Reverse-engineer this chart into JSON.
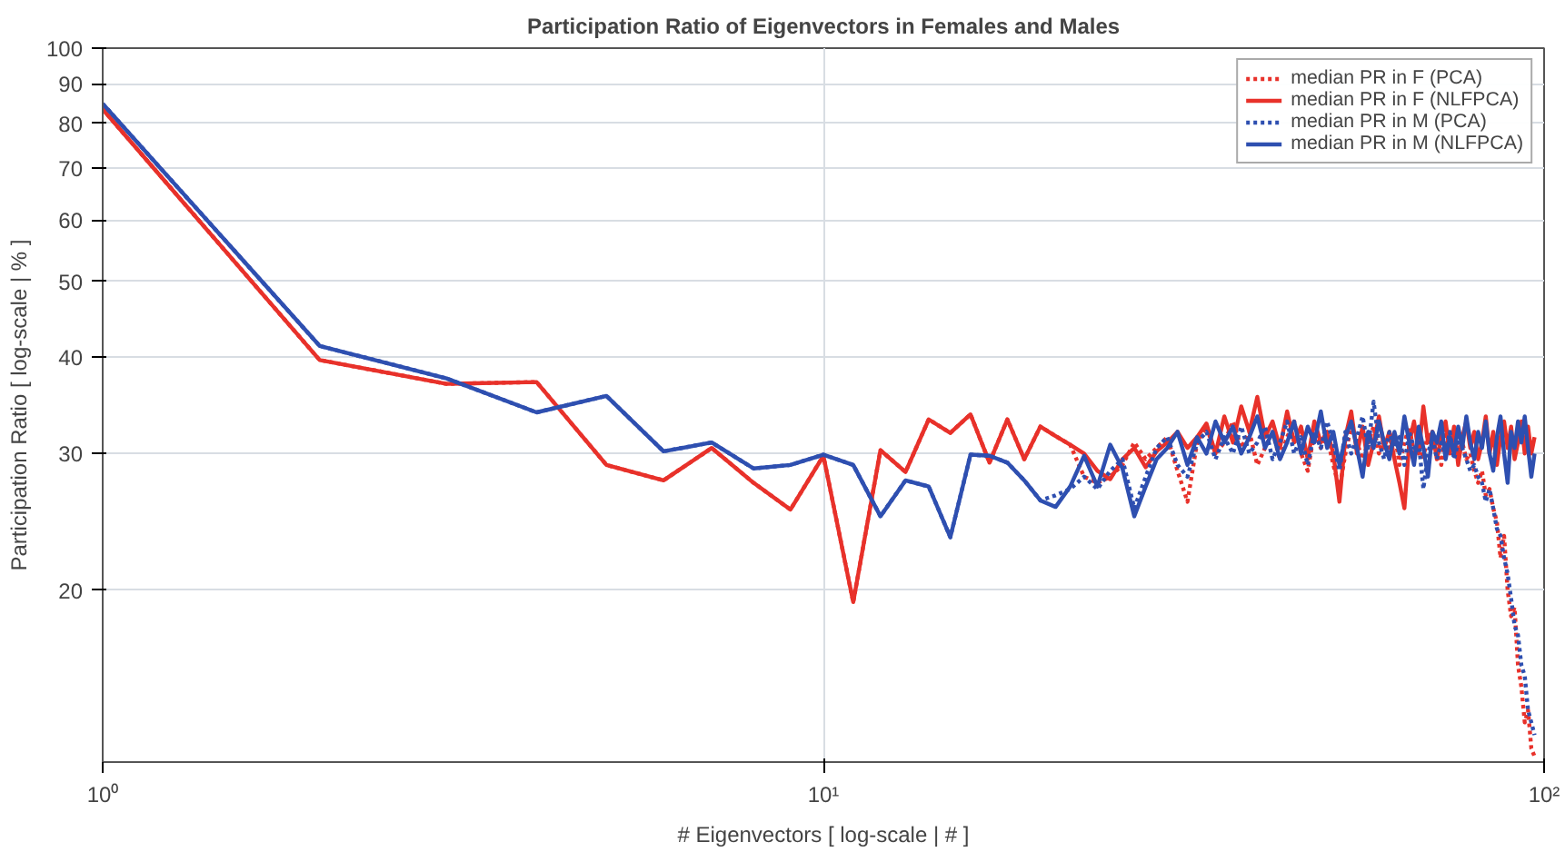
{
  "chart_data": {
    "type": "line",
    "title": "Participation Ratio of Eigenvectors in Females and Males",
    "xlabel": "# Eigenvectors [ log-scale | # ]",
    "ylabel": "Participation Ratio [ log-scale | % ]",
    "log": "xy",
    "grid": true,
    "legend": "top right",
    "marker": "none",
    "xlim": [
      1,
      100
    ],
    "ylim": [
      12,
      100
    ],
    "xticks": [
      {
        "value": 1,
        "label": "10⁰"
      },
      {
        "value": 10,
        "label": "10¹"
      },
      {
        "value": 100,
        "label": "10²"
      }
    ],
    "yticks": [
      20,
      30,
      40,
      50,
      60,
      70,
      80,
      90,
      100
    ],
    "x": [
      1,
      2,
      3,
      4,
      5,
      6,
      7,
      8,
      9,
      10,
      11,
      12,
      13,
      14,
      15,
      16,
      17,
      18,
      19,
      20,
      21,
      22,
      23,
      24,
      25,
      26,
      27,
      28,
      29,
      30,
      31,
      32,
      33,
      34,
      35,
      36,
      37,
      38,
      39,
      40,
      41,
      42,
      43,
      44,
      45,
      46,
      47,
      48,
      49,
      50,
      51,
      52,
      53,
      54,
      55,
      56,
      57,
      58,
      59,
      60,
      61,
      62,
      63,
      64,
      65,
      66,
      67,
      68,
      69,
      70,
      71,
      72,
      73,
      74,
      75,
      76,
      77,
      78,
      79,
      80,
      81,
      82,
      83,
      84,
      85,
      86,
      87,
      88,
      89,
      90,
      91,
      92,
      93,
      94,
      95,
      96,
      97
    ],
    "series": [
      {
        "name": "median PR in F (PCA)",
        "color": "#e8312a",
        "line_style": "dotted",
        "values": [
          83.4,
          39.6,
          36.9,
          37.1,
          29.0,
          27.7,
          30.5,
          27.5,
          25.4,
          29.8,
          19.3,
          30.3,
          28.4,
          33.2,
          31.9,
          33.7,
          29.2,
          33.2,
          29.5,
          32.5,
          31.6,
          30.8,
          28.0,
          27.5,
          28.0,
          29.0,
          31.0,
          29.5,
          30.5,
          31.5,
          28.5,
          26.0,
          31.0,
          32.5,
          30.0,
          31.0,
          33.0,
          30.5,
          32.0,
          29.0,
          30.5,
          32.0,
          29.5,
          31.5,
          33.0,
          30.0,
          28.5,
          32.0,
          30.5,
          31.5,
          29.0,
          27.0,
          30.0,
          32.5,
          31.0,
          29.5,
          31.0,
          32.5,
          30.0,
          31.5,
          30.5,
          32.0,
          29.0,
          31.0,
          32.5,
          30.0,
          31.5,
          29.5,
          32.0,
          30.5,
          31.0,
          29.0,
          32.0,
          30.5,
          31.5,
          30.0,
          31.0,
          29.5,
          30.0,
          28.5,
          27.5,
          28.5,
          26.5,
          27.0,
          25.5,
          24.5,
          22.0,
          23.5,
          20.0,
          18.5,
          19.0,
          16.0,
          15.0,
          13.5,
          14.0,
          12.5,
          12.2
        ]
      },
      {
        "name": "median PR in F (NLFPCA)",
        "color": "#e8312a",
        "line_style": "solid",
        "values": [
          83.4,
          39.6,
          36.9,
          37.1,
          29.0,
          27.7,
          30.5,
          27.5,
          25.4,
          29.8,
          19.3,
          30.3,
          28.4,
          33.2,
          31.9,
          33.7,
          29.2,
          33.2,
          29.5,
          32.5,
          31.6,
          30.8,
          30.0,
          28.5,
          27.8,
          29.5,
          30.5,
          28.8,
          30.2,
          31.0,
          32.0,
          30.5,
          31.5,
          32.8,
          30.0,
          33.5,
          31.0,
          34.5,
          32.0,
          35.5,
          31.5,
          33.0,
          30.5,
          34.0,
          31.0,
          32.5,
          29.5,
          33.0,
          31.0,
          32.0,
          30.0,
          26.0,
          31.5,
          34.0,
          30.0,
          32.5,
          29.0,
          31.0,
          33.5,
          30.5,
          32.0,
          29.5,
          27.5,
          25.5,
          31.0,
          33.0,
          30.0,
          34.5,
          31.0,
          32.0,
          29.5,
          31.5,
          33.0,
          30.0,
          32.5,
          29.0,
          31.5,
          33.0,
          30.5,
          32.0,
          29.5,
          31.0,
          33.5,
          30.0,
          32.0,
          29.0,
          31.5,
          33.0,
          30.5,
          32.5,
          29.5,
          31.0,
          33.0,
          30.0,
          32.5,
          30.0,
          31.5
        ]
      },
      {
        "name": "median PR in M (PCA)",
        "color": "#2e4fb0",
        "line_style": "dotted",
        "values": [
          84.8,
          41.3,
          37.5,
          33.9,
          35.6,
          30.2,
          31.0,
          28.7,
          29.0,
          29.9,
          29.0,
          24.9,
          27.7,
          27.2,
          23.4,
          29.9,
          29.8,
          29.2,
          27.7,
          26.1,
          26.5,
          27.0,
          28.0,
          27.0,
          28.5,
          29.5,
          25.5,
          28.0,
          30.5,
          31.5,
          29.0,
          28.0,
          31.0,
          32.0,
          29.5,
          31.5,
          30.0,
          32.5,
          30.0,
          31.0,
          32.5,
          29.5,
          31.0,
          33.0,
          30.0,
          31.5,
          29.0,
          32.0,
          30.5,
          33.0,
          31.0,
          28.5,
          32.0,
          30.0,
          31.5,
          33.5,
          30.5,
          35.0,
          31.0,
          29.5,
          32.0,
          30.5,
          31.5,
          29.0,
          32.0,
          30.5,
          31.0,
          27.0,
          30.0,
          31.5,
          29.5,
          31.0,
          30.0,
          32.0,
          29.5,
          31.0,
          30.5,
          29.5,
          28.5,
          29.0,
          28.0,
          27.5,
          26.0,
          27.0,
          25.5,
          24.0,
          23.5,
          22.0,
          21.0,
          19.5,
          18.0,
          17.5,
          16.0,
          15.5,
          14.0,
          13.5,
          13.0
        ]
      },
      {
        "name": "median PR in M (NLFPCA)",
        "color": "#2e4fb0",
        "line_style": "solid",
        "values": [
          84.8,
          41.3,
          37.5,
          33.9,
          35.6,
          30.2,
          31.0,
          28.7,
          29.0,
          29.9,
          29.0,
          24.9,
          27.7,
          27.2,
          23.4,
          29.9,
          29.8,
          29.2,
          27.7,
          26.1,
          25.6,
          27.2,
          29.8,
          27.2,
          30.8,
          28.7,
          24.9,
          27.2,
          29.5,
          30.5,
          32.0,
          29.0,
          31.5,
          30.0,
          33.0,
          31.0,
          32.5,
          30.0,
          31.5,
          33.5,
          30.5,
          32.0,
          29.5,
          31.0,
          33.0,
          30.0,
          32.5,
          31.0,
          34.0,
          30.5,
          32.0,
          29.0,
          31.5,
          33.0,
          30.5,
          28.0,
          32.0,
          30.5,
          33.0,
          31.0,
          29.5,
          32.0,
          30.0,
          33.5,
          31.0,
          29.0,
          32.5,
          30.5,
          28.0,
          32.0,
          31.0,
          33.0,
          29.5,
          31.5,
          30.0,
          32.5,
          30.5,
          33.5,
          31.0,
          29.5,
          32.0,
          30.5,
          33.0,
          30.0,
          28.5,
          31.5,
          33.5,
          30.0,
          27.5,
          32.0,
          30.5,
          33.0,
          31.0,
          33.5,
          30.5,
          28.0,
          30.0
        ]
      }
    ]
  }
}
